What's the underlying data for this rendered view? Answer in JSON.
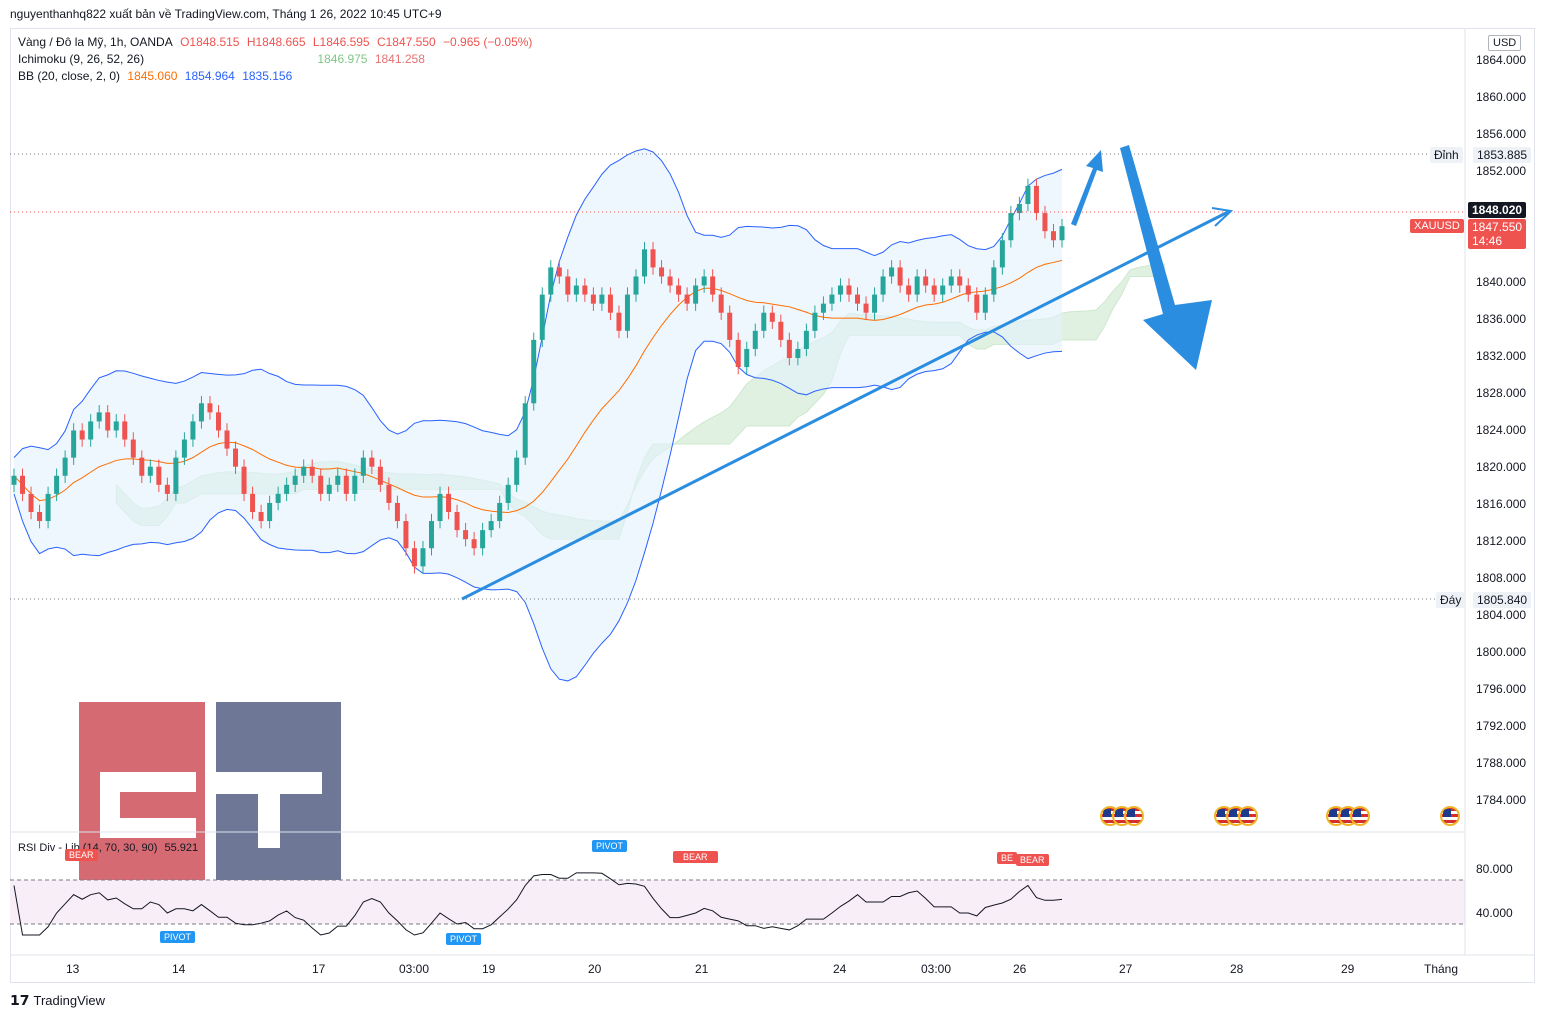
{
  "header": {
    "credit": "nguyenthanhq822 xuất bản về TradingView.com, Tháng 1 26, 2022 10:45 UTC+9"
  },
  "legend": {
    "symbol_line": "Vàng / Đô la Mỹ, 1h, OANDA",
    "o": "O1848.515",
    "h": "H1848.665",
    "l": "L1846.595",
    "c": "C1847.550",
    "chg": "−0.965 (−0.05%)",
    "ichimoku_label": "Ichimoku (9, 26, 52, 26)",
    "ichimoku_v1": "1846.975",
    "ichimoku_v2": "1841.258",
    "bb_label": "BB (20, close, 2, 0)",
    "bb_v1": "1845.060",
    "bb_v2": "1854.964",
    "bb_v3": "1835.156"
  },
  "price_axis": {
    "currency": "USD",
    "ticks": [
      "1864.000",
      "1860.000",
      "1856.000",
      "1852.000",
      "1848.000",
      "1844.000",
      "1840.000",
      "1836.000",
      "1832.000",
      "1828.000",
      "1824.000",
      "1820.000",
      "1816.000",
      "1812.000",
      "1808.000",
      "1804.000",
      "1800.000",
      "1796.000",
      "1792.000",
      "1788.000",
      "1784.000"
    ],
    "high_label": "Đỉnh",
    "high_value": "1853.885",
    "low_label": "Đáy",
    "low_value": "1805.840",
    "last_value": "1848.020",
    "symbol": "XAUUSD",
    "symbol_price": "1847.550",
    "countdown": "14:46"
  },
  "rsi": {
    "label": "RSI Div - Lib (14, 70, 30, 90)",
    "value": "55.921",
    "ticks": [
      "80.000",
      "40.000"
    ],
    "tags": [
      {
        "text": "BEAR",
        "kind": "bear"
      },
      {
        "text": "PIVOT",
        "kind": "pivot"
      },
      {
        "text": "PIVOT",
        "kind": "pivot"
      },
      {
        "text": "PIVOT",
        "kind": "pivot"
      },
      {
        "text": "BEAR",
        "kind": "bear"
      },
      {
        "text": "BE",
        "kind": "bear"
      },
      {
        "text": "BEAR",
        "kind": "bear"
      }
    ]
  },
  "time_axis": {
    "ticks": [
      "13",
      "14",
      "17",
      "03:00",
      "19",
      "20",
      "21",
      "24",
      "03:00",
      "26",
      "27",
      "28",
      "29",
      "Tháng"
    ]
  },
  "footer": {
    "brand": "TradingView"
  },
  "colors": {
    "up": "#26a69a",
    "down": "#ef5350",
    "bb_line": "#2962ff",
    "bb_fill": "#e3f2fd",
    "bb_basis": "#ff6d00",
    "trend": "#2a8de0",
    "cloud_green": "#c8e6c9",
    "cloud_red": "#f8d7d7"
  },
  "chart_data": {
    "type": "candlestick",
    "symbol": "XAUUSD",
    "timeframe": "1h",
    "ylim": [
      1782,
      1867
    ],
    "series": [
      {
        "name": "Vàng / Đô la Mỹ",
        "close": [
          1820,
          1818,
          1816,
          1815,
          1818,
          1820,
          1822,
          1825,
          1824,
          1826,
          1827,
          1825,
          1826,
          1824,
          1822,
          1820,
          1821,
          1819,
          1818,
          1822,
          1824,
          1826,
          1828,
          1827,
          1825,
          1823,
          1821,
          1818,
          1816,
          1815,
          1817,
          1818,
          1819,
          1820,
          1821,
          1820,
          1818,
          1819,
          1820,
          1818,
          1820,
          1822,
          1821,
          1819,
          1817,
          1815,
          1812,
          1810,
          1812,
          1815,
          1818,
          1816,
          1814,
          1813,
          1812,
          1814,
          1815,
          1817,
          1819,
          1822,
          1828,
          1835,
          1840,
          1843,
          1842,
          1840,
          1841,
          1840,
          1839,
          1840,
          1838,
          1836,
          1840,
          1842,
          1845,
          1843,
          1842,
          1841,
          1840,
          1839,
          1841,
          1842,
          1840,
          1838,
          1835,
          1832,
          1834,
          1836,
          1838,
          1837,
          1835,
          1833,
          1834,
          1836,
          1838,
          1839,
          1840,
          1841,
          1840,
          1839,
          1838,
          1840,
          1842,
          1843,
          1841,
          1840,
          1842,
          1841,
          1840,
          1841,
          1842,
          1841,
          1840,
          1838,
          1840,
          1843,
          1846,
          1849,
          1850,
          1852,
          1849,
          1847,
          1846,
          1847.55
        ]
      }
    ],
    "annotations": [
      "Đỉnh 1853.885",
      "Đáy 1805.840"
    ]
  }
}
